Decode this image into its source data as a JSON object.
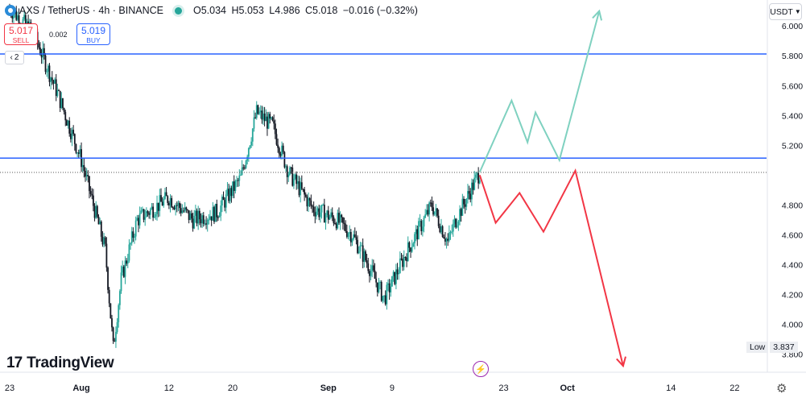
{
  "header": {
    "symbol_line": "AXS / TetherUS · 4h · BINANCE",
    "open": "O5.034",
    "high": "H5.053",
    "low": "L4.986",
    "close": "C5.018",
    "change": "−0.016 (−0.32%)"
  },
  "trade": {
    "sell_price": "5.017",
    "sell_label": "SELL",
    "spread": "0.002",
    "buy_price": "5.019",
    "buy_label": "BUY"
  },
  "layers_count": "2",
  "currency": "USDT",
  "brand": "TradingView",
  "low_label": {
    "key": "Low",
    "value": "3.837"
  },
  "icons": {
    "symbol": "axs-coin-icon",
    "market_status": "market-open-dot-icon",
    "layers": "layers-chevron-icon",
    "currency_menu": "chevron-down-icon",
    "event": "lightning-bolt-icon",
    "settings": "gear-icon"
  },
  "colors": {
    "up": "#26a69a",
    "down": "#131722",
    "level_line": "#2962ff",
    "bull_path": "#7fd1c0",
    "bear_path": "#f23645",
    "sell": "#f23645",
    "buy": "#2962ff"
  },
  "chart_data": {
    "type": "candlestick",
    "y_axis": {
      "ticks": [
        "6.000",
        "5.800",
        "5.600",
        "5.400",
        "5.200",
        "4.800",
        "4.600",
        "4.400",
        "4.200",
        "4.000",
        "3.800"
      ],
      "range": [
        3.77,
        6.12
      ]
    },
    "x_axis": {
      "ticks": [
        "23",
        "Aug",
        "12",
        "20",
        "Sep",
        "9",
        "23",
        "Oct",
        "14",
        "22"
      ],
      "range": [
        "2024-07-23",
        "2024-10-26"
      ]
    },
    "horizontal_levels": [
      {
        "value": 5.812,
        "label": "5.812"
      },
      {
        "value": 5.114,
        "label": "5.114"
      }
    ],
    "current_price": {
      "value": 5.018,
      "label": "5.018"
    },
    "low": 3.837,
    "price_path_anchors": [
      [
        "2024-07-23",
        6.12
      ],
      [
        "2024-07-26",
        5.95
      ],
      [
        "2024-07-29",
        5.55
      ],
      [
        "2024-08-01",
        5.1
      ],
      [
        "2024-08-04",
        4.5
      ],
      [
        "2024-08-05",
        3.84
      ],
      [
        "2024-08-06",
        4.3
      ],
      [
        "2024-08-08",
        4.7
      ],
      [
        "2024-08-12",
        4.85
      ],
      [
        "2024-08-15",
        4.7
      ],
      [
        "2024-08-18",
        4.75
      ],
      [
        "2024-08-21",
        4.98
      ],
      [
        "2024-08-23",
        5.42
      ],
      [
        "2024-08-25",
        5.33
      ],
      [
        "2024-08-27",
        5.02
      ],
      [
        "2024-08-30",
        4.78
      ],
      [
        "2024-09-02",
        4.7
      ],
      [
        "2024-09-04",
        4.6
      ],
      [
        "2024-09-06",
        4.4
      ],
      [
        "2024-09-08",
        4.17
      ],
      [
        "2024-09-11",
        4.5
      ],
      [
        "2024-09-14",
        4.8
      ],
      [
        "2024-09-16",
        4.55
      ],
      [
        "2024-09-17",
        4.7
      ],
      [
        "2024-09-20",
        5.02
      ]
    ],
    "projections": [
      {
        "name": "",
        "color": "#7fd1c0",
        "points": [
          [
            "2024-09-20",
            5.02
          ],
          [
            "2024-09-24",
            5.5
          ],
          [
            "2024-09-26",
            5.22
          ],
          [
            "2024-09-27",
            5.42
          ],
          [
            "2024-09-30",
            5.1
          ],
          [
            "2024-10-05",
            6.1
          ]
        ]
      },
      {
        "name": "",
        "color": "#f23645",
        "points": [
          [
            "2024-09-20",
            5.0
          ],
          [
            "2024-09-22",
            4.68
          ],
          [
            "2024-09-25",
            4.88
          ],
          [
            "2024-09-28",
            4.62
          ],
          [
            "2024-10-02",
            5.03
          ],
          [
            "2024-10-08",
            3.72
          ]
        ]
      }
    ]
  }
}
